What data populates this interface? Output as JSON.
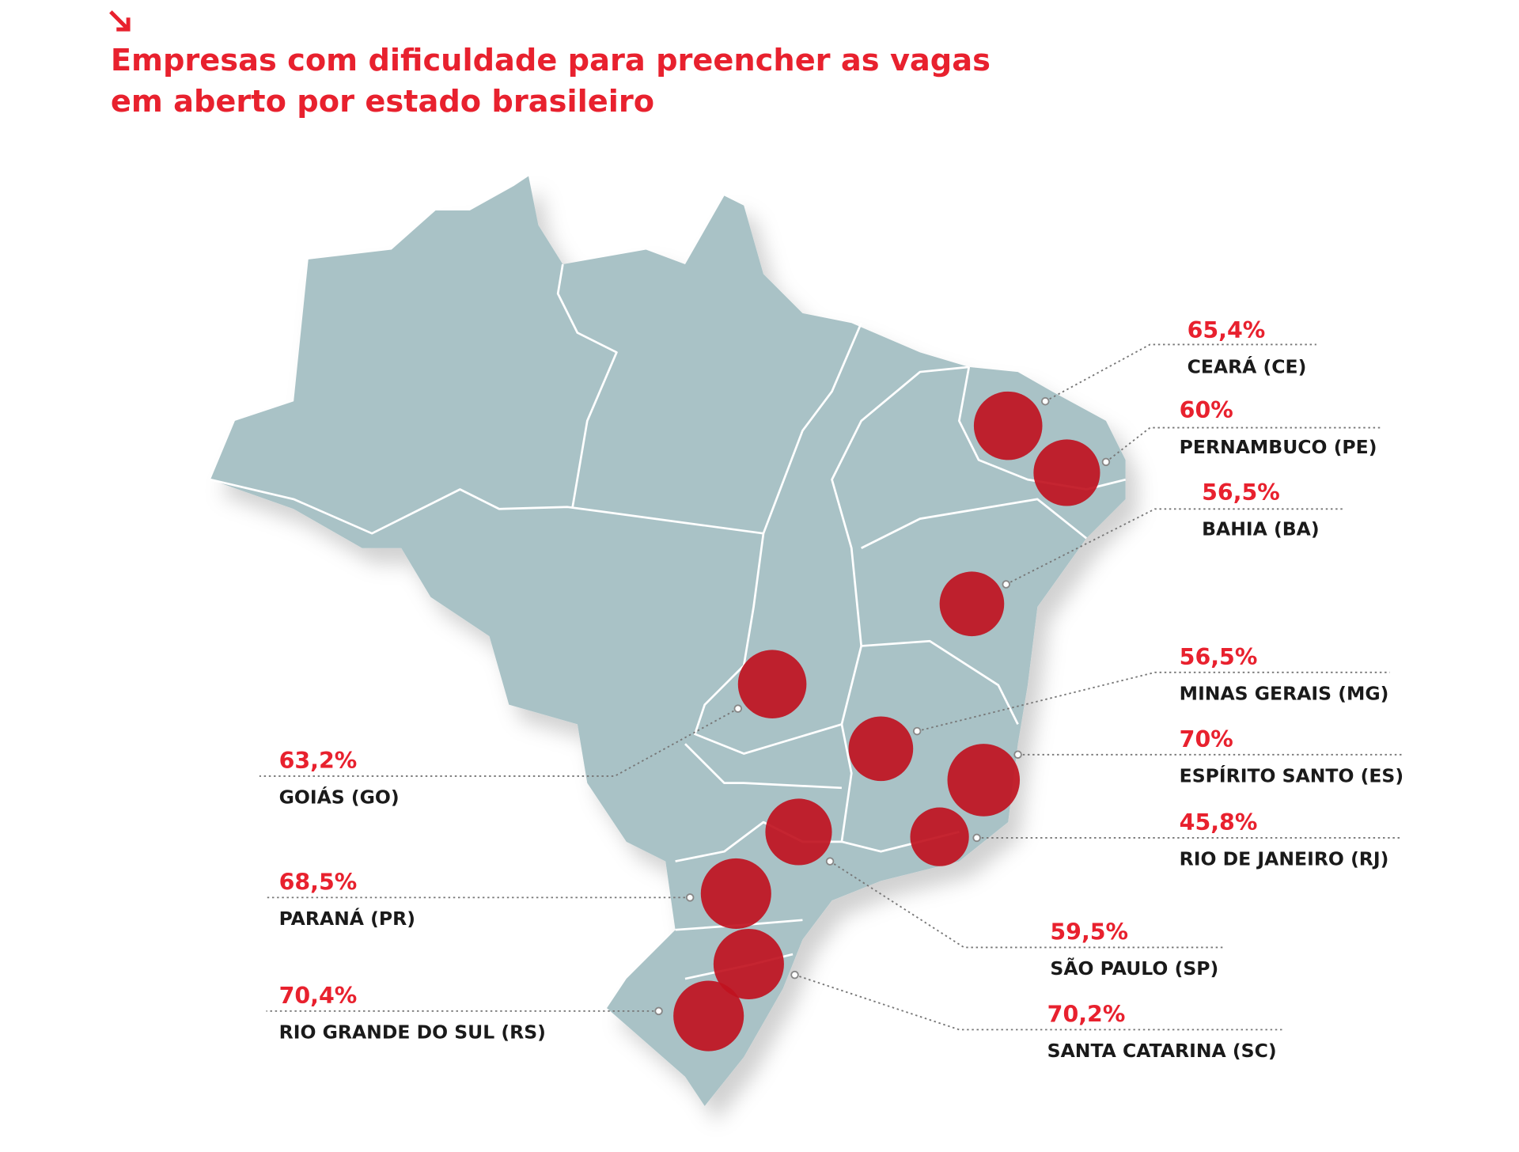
{
  "chart_data": {
    "type": "map",
    "title": [
      "Empresas com dificuldade para preencher as vagas",
      "em aberto por estado brasileiro"
    ],
    "categories": [
      "CEARÁ (CE)",
      "PERNAMBUCO (PE)",
      "BAHIA (BA)",
      "MINAS GERAIS (MG)",
      "ESPÍRITO SANTO (ES)",
      "RIO DE JANEIRO (RJ)",
      "SÃO PAULO (SP)",
      "SANTA CATARINA (SC)",
      "GOIÁS (GO)",
      "PARANÁ (PR)",
      "RIO GRANDE DO SUL (RS)"
    ],
    "values": [
      65.4,
      60,
      56.5,
      56.5,
      70,
      45.8,
      59.5,
      70.2,
      63.2,
      68.5,
      70.4
    ],
    "value_labels": [
      "65,4%",
      "60%",
      "56,5%",
      "56,5%",
      "70%",
      "45,8%",
      "59,5%",
      "70,2%",
      "63,2%",
      "68,5%",
      "70,4%"
    ],
    "color": "#c0121f"
  }
}
